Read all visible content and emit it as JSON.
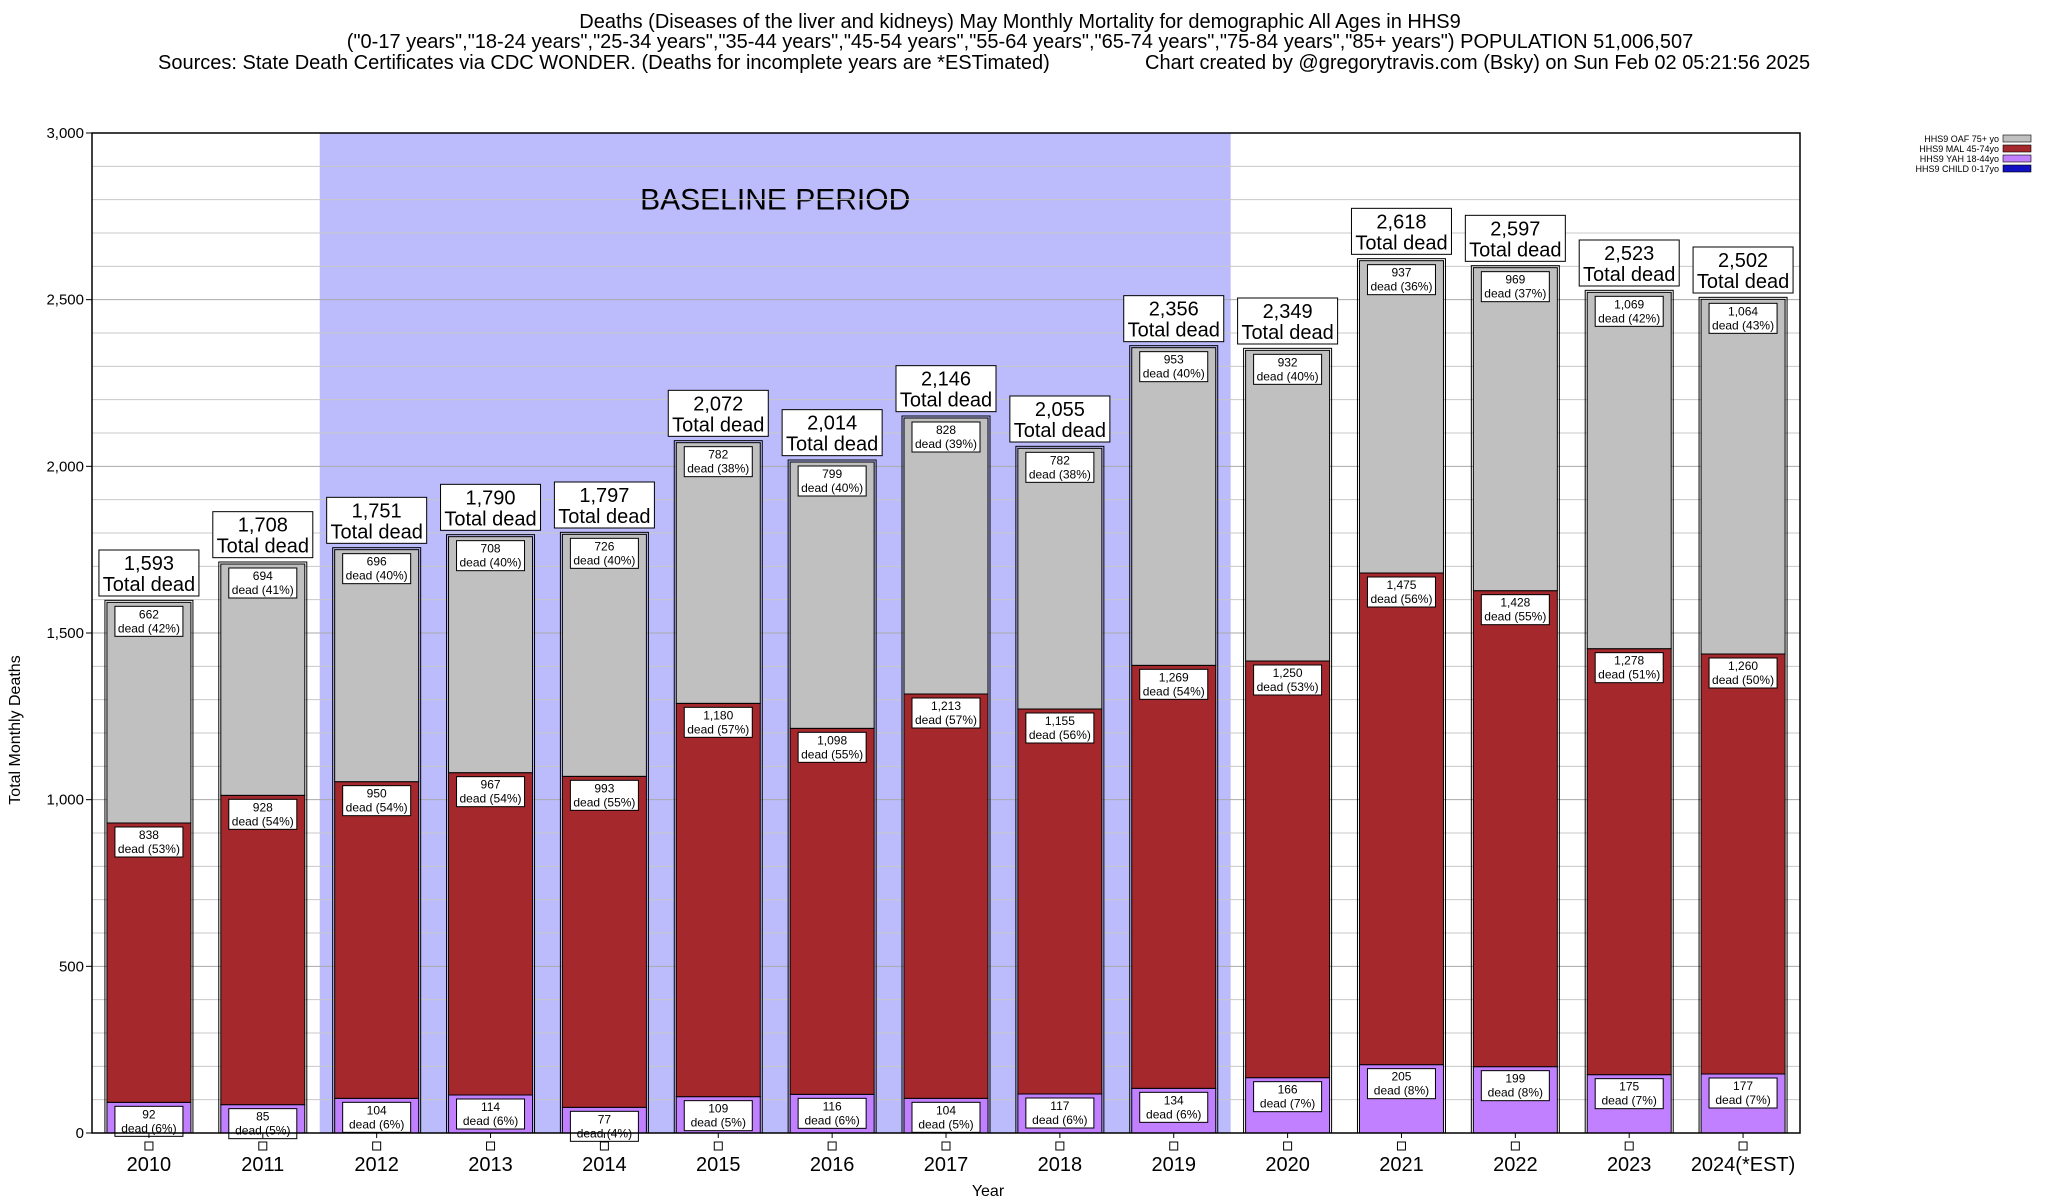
{
  "title_lines": [
    "Deaths (Diseases of the liver and kidneys) May Monthly Mortality for demographic All Ages in HHS9",
    "(\"0-17 years\",\"18-24 years\",\"25-34 years\",\"35-44 years\",\"45-54 years\",\"55-64 years\",\"65-74 years\",\"75-84 years\",\"85+ years\") POPULATION 51,006,507",
    "Sources: State Death Certificates via CDC WONDER. (Deaths for incomplete years are *ESTimated)",
    "Chart created by @gregorytravis.com (Bsky) on Sun Feb 02 05:21:56 2025"
  ],
  "colors": {
    "baseline_band": "#bcbcfc",
    "oaf": "#c0c0c0",
    "mal": "#a4282c",
    "yah": "#c080ff",
    "child": "#1010c0",
    "grid": "#c8c8c8"
  },
  "chart_data": {
    "type": "bar",
    "stacked": true,
    "xlabel": "Year",
    "ylabel": "Total Monthly Deaths",
    "ylim": [
      0,
      3000
    ],
    "yticks": [
      "0",
      "500",
      "1,000",
      "1,500",
      "2,000",
      "2,500",
      "3,000"
    ],
    "yticks_values": [
      0,
      500,
      1000,
      1500,
      2000,
      2500,
      3000
    ],
    "grid": true,
    "legend_position": "top-right",
    "baseline_label": "BASELINE PERIOD",
    "baseline_range": [
      "2012",
      "2019"
    ],
    "total_suffix": "Total dead",
    "categories": [
      "2010",
      "2011",
      "2012",
      "2013",
      "2014",
      "2015",
      "2016",
      "2017",
      "2018",
      "2019",
      "2020",
      "2021",
      "2022",
      "2023",
      "2024(*EST)"
    ],
    "totals": [
      "1,593",
      "1,708",
      "1,751",
      "1,790",
      "1,797",
      "2,072",
      "2,014",
      "2,146",
      "2,055",
      "2,356",
      "2,349",
      "2,618",
      "2,597",
      "2,523",
      "2,502"
    ],
    "totals_values": [
      1593,
      1708,
      1751,
      1790,
      1797,
      2072,
      2014,
      2146,
      2055,
      2356,
      2349,
      2618,
      2597,
      2523,
      2502
    ],
    "series": [
      {
        "name": "HHS9 CHILD 0-17yo",
        "values": [
          0,
          0,
          0,
          0,
          0,
          0,
          0,
          0,
          0,
          0,
          0,
          0,
          0,
          0,
          0
        ],
        "labels": [
          "",
          "",
          "",
          "",
          "",
          "",
          "",
          "",
          "",
          "",
          "",
          "",
          "",
          "",
          ""
        ],
        "sublabels": [
          "",
          "",
          "",
          "",
          "",
          "",
          "",
          "",
          "",
          "",
          "",
          "",
          "",
          "",
          ""
        ]
      },
      {
        "name": "HHS9 YAH 18-44yo",
        "values": [
          92,
          85,
          104,
          114,
          77,
          109,
          116,
          104,
          117,
          134,
          166,
          205,
          199,
          175,
          177
        ],
        "labels": [
          "92",
          "85",
          "104",
          "114",
          "77",
          "109",
          "116",
          "104",
          "117",
          "134",
          "166",
          "205",
          "199",
          "175",
          "177"
        ],
        "sublabels": [
          "dead (6%)",
          "dead (5%)",
          "dead (6%)",
          "dead (6%)",
          "dead (4%)",
          "dead (5%)",
          "dead (6%)",
          "dead (5%)",
          "dead (6%)",
          "dead (6%)",
          "dead (7%)",
          "dead (8%)",
          "dead (8%)",
          "dead (7%)",
          "dead (7%)"
        ]
      },
      {
        "name": "HHS9 MAL 45-74yo",
        "values": [
          838,
          928,
          950,
          967,
          993,
          1180,
          1098,
          1213,
          1155,
          1269,
          1250,
          1475,
          1428,
          1278,
          1260
        ],
        "labels": [
          "838",
          "928",
          "950",
          "967",
          "993",
          "1,180",
          "1,098",
          "1,213",
          "1,155",
          "1,269",
          "1,250",
          "1,475",
          "1,428",
          "1,278",
          "1,260"
        ],
        "sublabels": [
          "dead (53%)",
          "dead (54%)",
          "dead (54%)",
          "dead (54%)",
          "dead (55%)",
          "dead (57%)",
          "dead (55%)",
          "dead (57%)",
          "dead (56%)",
          "dead (54%)",
          "dead (53%)",
          "dead (56%)",
          "dead (55%)",
          "dead (51%)",
          "dead (50%)"
        ]
      },
      {
        "name": "HHS9 OAF 75+ yo",
        "values": [
          662,
          694,
          696,
          708,
          726,
          782,
          799,
          828,
          782,
          953,
          932,
          937,
          969,
          1069,
          1064
        ],
        "labels": [
          "662",
          "694",
          "696",
          "708",
          "726",
          "782",
          "799",
          "828",
          "782",
          "953",
          "932",
          "937",
          "969",
          "1,069",
          "1,064"
        ],
        "sublabels": [
          "dead (42%)",
          "dead (41%)",
          "dead (40%)",
          "dead (40%)",
          "dead (40%)",
          "dead (38%)",
          "dead (40%)",
          "dead (39%)",
          "dead (38%)",
          "dead (40%)",
          "dead (40%)",
          "dead (36%)",
          "dead (37%)",
          "dead (42%)",
          "dead (43%)"
        ]
      }
    ],
    "legend": [
      "HHS9 OAF 75+ yo",
      "HHS9 MAL 45-74yo",
      "HHS9 YAH 18-44yo",
      "HHS9 CHILD 0-17yo"
    ]
  }
}
